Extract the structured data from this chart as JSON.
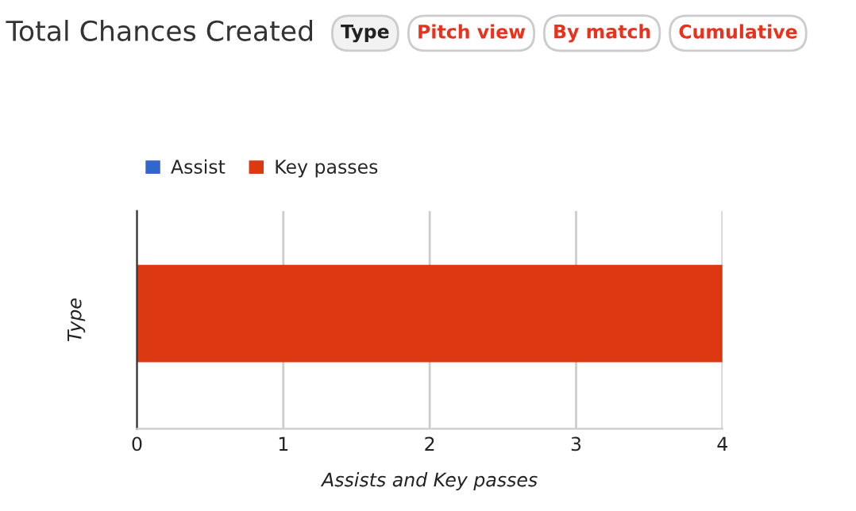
{
  "chart_data": {
    "type": "bar",
    "orientation": "horizontal",
    "stacked": true,
    "title": "Total Chances Created",
    "annotations": [
      "Type",
      "Pitch view",
      "By match",
      "Cumulative"
    ],
    "categories": [
      null
    ],
    "series": [
      {
        "name": "Assist",
        "color": "#3366cc",
        "values": [
          0
        ]
      },
      {
        "name": "Key passes",
        "color": "#dc3912",
        "values": [
          4
        ]
      }
    ],
    "xlabel": "Assists and Key passes",
    "ylabel": "Type",
    "xlim": [
      0,
      4
    ],
    "xticks": [
      0,
      1,
      2,
      3,
      4
    ],
    "grid": "x",
    "legend": "top left"
  }
}
